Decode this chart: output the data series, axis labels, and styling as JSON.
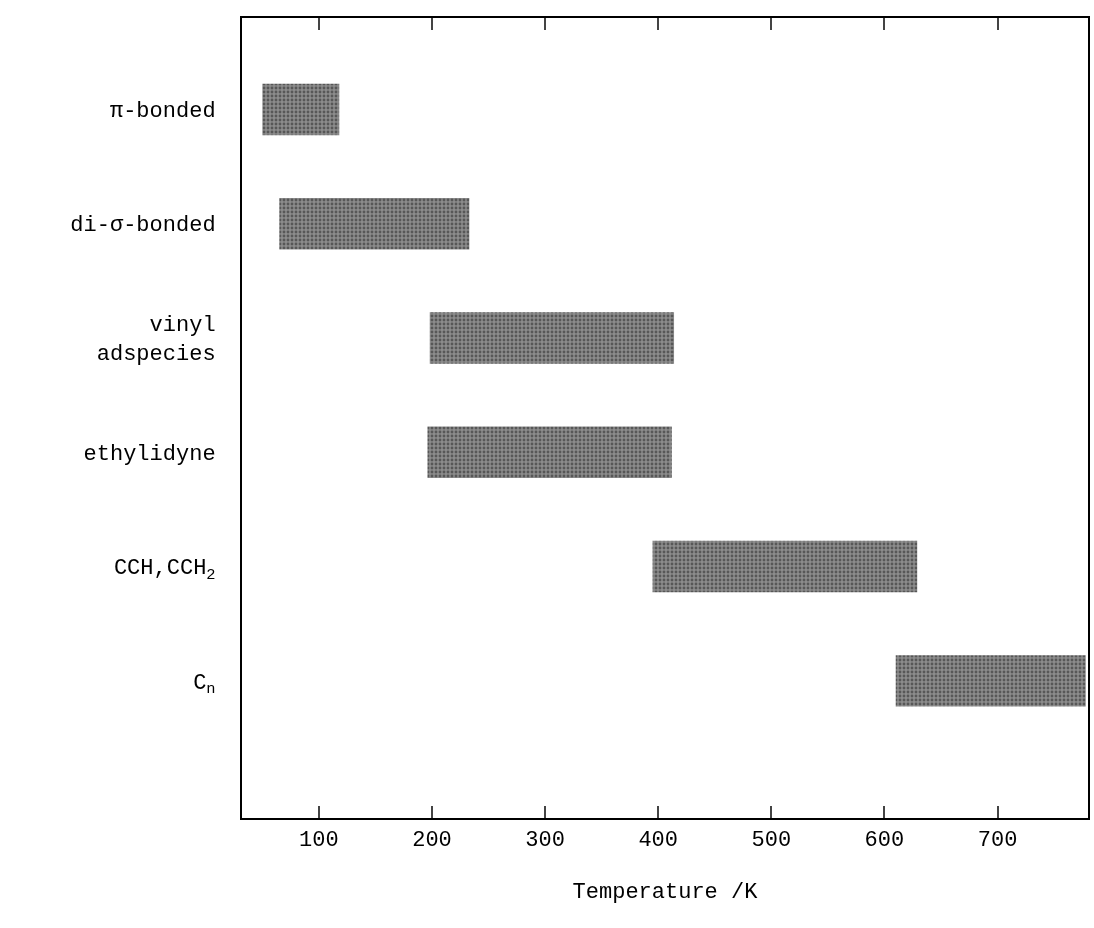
{
  "chart_data": {
    "type": "bar",
    "orientation": "horizontal",
    "xlabel": "Temperature /K",
    "categories": [
      "π-bonded",
      "di-σ-bonded",
      "vinyl\n adspecies",
      "ethylidyne",
      "CCH,CCH$_{2}$",
      "C$_{n}$"
    ],
    "base": [
      50,
      65,
      198,
      196,
      395,
      610
    ],
    "values": [
      68,
      168,
      216,
      216,
      234,
      168
    ],
    "color": "#8c8c8c",
    "xlim": [
      32,
      780
    ],
    "xticks": [
      100,
      200,
      300,
      400,
      500,
      600,
      700
    ],
    "line_style": "solid"
  }
}
